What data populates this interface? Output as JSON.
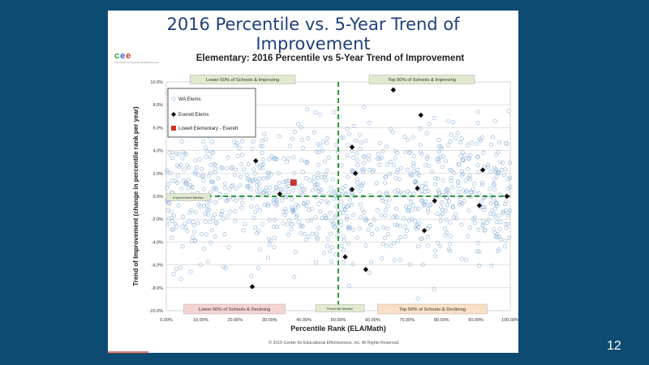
{
  "slide": {
    "title": "2016 Percentile vs. 5-Year Trend of Improvement",
    "page_number": "12",
    "logo_text": "cee",
    "logo_sub": "The Center for Educational Effectiveness"
  },
  "chart_data": {
    "type": "scatter",
    "title": "Elementary: 2016 Percentile vs 5-Year Trend of Improvement",
    "xlabel": "Percentile Rank (ELA/Math)",
    "ylabel": "Trend of Improvement (change in percentile rank per year)",
    "xlim": [
      0,
      100
    ],
    "ylim": [
      -10,
      10
    ],
    "x_ticks": [
      "0.00%",
      "10.00%",
      "20.00%",
      "30.00%",
      "40.00%",
      "50.00%",
      "60.00%",
      "70.00%",
      "80.00%",
      "90.00%",
      "100.00%"
    ],
    "y_ticks": [
      "10.0%",
      "8.0%",
      "6.0%",
      "4.0%",
      "2.0%",
      "0.0%",
      "-2.0%",
      "-4.0%",
      "-6.0%",
      "-8.0%",
      "-10.0%"
    ],
    "grid": "horizontal",
    "legend_position": "top-left",
    "x_median": 50,
    "y_median": 0,
    "quadrant_labels": {
      "top_left": "Lower 50% of Schools & Improving",
      "top_right": "Top 50% of Schools & Improving",
      "bottom_left": "Lower 50% of Schools & Declining",
      "bottom_right": "Top 50% of Schools & Declining"
    },
    "median_labels": {
      "y": "Improvement Median",
      "x": "Percentile Median"
    },
    "footer": "© 2016 Center for Educational Effectiveness, Inc. All Rights Reserved.",
    "series": [
      {
        "name": "WA Elems",
        "style": "open-circle",
        "color": "#8fb3d9",
        "count": 950
      },
      {
        "name": "Everett Elems",
        "style": "diamond",
        "color": "#000000",
        "points": [
          {
            "x": 26,
            "y": 3.1
          },
          {
            "x": 33,
            "y": 0.2
          },
          {
            "x": 25,
            "y": -7.9
          },
          {
            "x": 54,
            "y": 4.3
          },
          {
            "x": 55,
            "y": 2.0
          },
          {
            "x": 54,
            "y": 0.6
          },
          {
            "x": 52,
            "y": -5.3
          },
          {
            "x": 58,
            "y": -6.4
          },
          {
            "x": 66,
            "y": 9.3
          },
          {
            "x": 73,
            "y": 0.7
          },
          {
            "x": 74,
            "y": 7.1
          },
          {
            "x": 78,
            "y": -0.4
          },
          {
            "x": 75,
            "y": -3.0
          },
          {
            "x": 92,
            "y": 2.3
          },
          {
            "x": 91,
            "y": -0.8
          },
          {
            "x": 99,
            "y": 0.0
          }
        ]
      },
      {
        "name": "Lowell Elementary - Everett",
        "style": "square",
        "color": "#d0312d",
        "points": [
          {
            "x": 37,
            "y": 1.2
          }
        ]
      }
    ],
    "colors": {
      "median_line": "#2e9a3a",
      "quadrant_green": "#dfeacf",
      "quadrant_red": "#f6d3d3",
      "quadrant_orange": "#fbe0c8",
      "grid": "#cfcfcf"
    }
  }
}
